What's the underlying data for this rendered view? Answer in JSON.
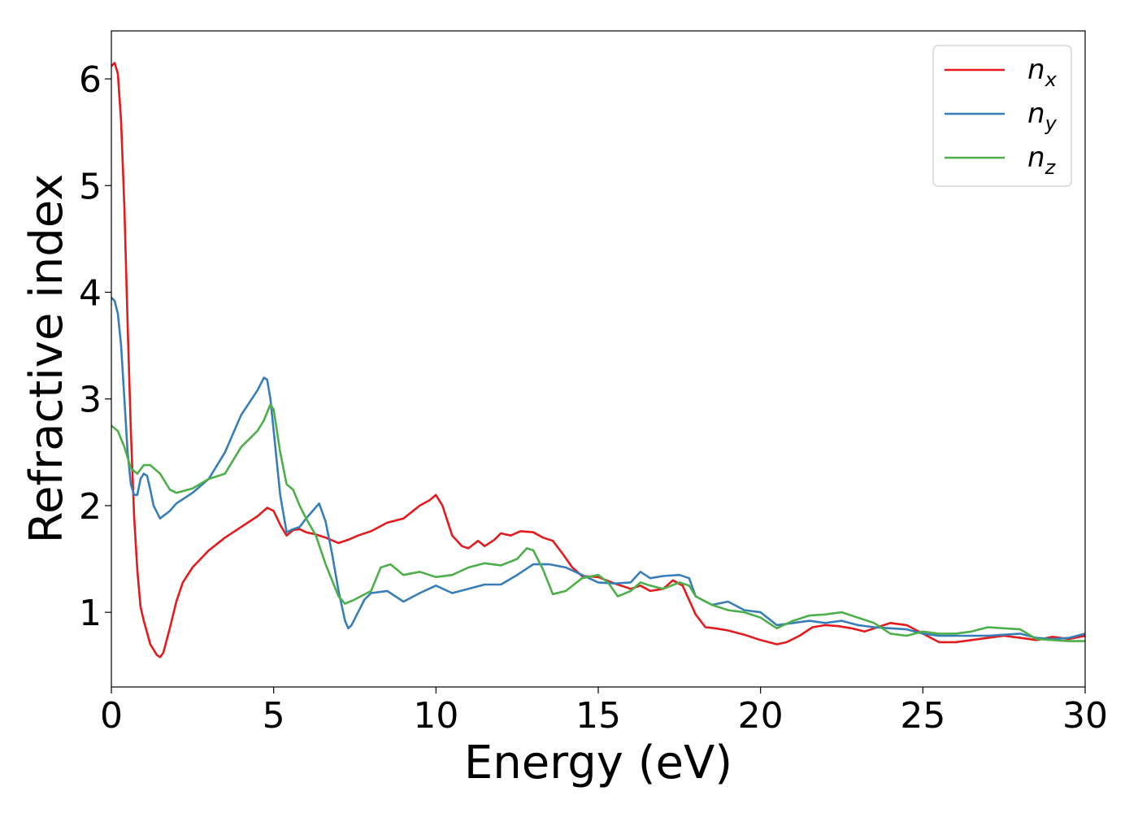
{
  "chart_data": {
    "type": "line",
    "xlabel": "Energy (eV)",
    "ylabel": "Refractive index",
    "xlim": [
      0,
      30
    ],
    "ylim": [
      0.3,
      6.45
    ],
    "xticks": [
      0,
      5,
      10,
      15,
      20,
      25,
      30
    ],
    "yticks": [
      1,
      2,
      3,
      4,
      5,
      6
    ],
    "grid": false,
    "legend_position": "top-right",
    "series": [
      {
        "name": "n_x",
        "label_base": "n",
        "label_sub": "x",
        "color": "#e41a1c",
        "x": [
          0,
          0.1,
          0.2,
          0.3,
          0.4,
          0.5,
          0.6,
          0.7,
          0.8,
          0.9,
          1.0,
          1.2,
          1.4,
          1.5,
          1.6,
          1.8,
          2.0,
          2.2,
          2.5,
          3.0,
          3.5,
          4.0,
          4.5,
          4.8,
          5.0,
          5.2,
          5.4,
          5.6,
          5.8,
          6.0,
          6.3,
          6.6,
          7.0,
          7.3,
          7.6,
          8.0,
          8.5,
          9.0,
          9.5,
          9.8,
          10.0,
          10.2,
          10.5,
          10.8,
          11.0,
          11.3,
          11.5,
          11.8,
          12.0,
          12.3,
          12.6,
          13.0,
          13.3,
          13.6,
          13.9,
          14.2,
          14.5,
          15.0,
          15.5,
          16.0,
          16.3,
          16.6,
          17.0,
          17.3,
          17.6,
          18.0,
          18.3,
          18.6,
          19.0,
          19.5,
          20.0,
          20.5,
          20.8,
          21.2,
          21.6,
          22.0,
          22.4,
          22.8,
          23.2,
          23.6,
          24.0,
          24.5,
          25.0,
          25.5,
          26.0,
          26.5,
          27.0,
          27.5,
          28.0,
          28.5,
          29.0,
          29.5,
          30.0
        ],
        "y": [
          6.12,
          6.15,
          6.05,
          5.6,
          4.8,
          3.7,
          2.7,
          1.9,
          1.4,
          1.05,
          0.92,
          0.7,
          0.6,
          0.58,
          0.62,
          0.85,
          1.1,
          1.28,
          1.42,
          1.58,
          1.7,
          1.8,
          1.9,
          1.98,
          1.95,
          1.82,
          1.72,
          1.77,
          1.78,
          1.75,
          1.73,
          1.7,
          1.65,
          1.68,
          1.72,
          1.76,
          1.84,
          1.88,
          2.0,
          2.05,
          2.1,
          2.0,
          1.72,
          1.62,
          1.6,
          1.67,
          1.62,
          1.68,
          1.74,
          1.72,
          1.76,
          1.75,
          1.7,
          1.67,
          1.55,
          1.42,
          1.34,
          1.33,
          1.27,
          1.22,
          1.25,
          1.2,
          1.22,
          1.3,
          1.25,
          0.98,
          0.86,
          0.85,
          0.83,
          0.79,
          0.74,
          0.7,
          0.72,
          0.78,
          0.86,
          0.88,
          0.87,
          0.85,
          0.82,
          0.86,
          0.9,
          0.88,
          0.8,
          0.72,
          0.72,
          0.74,
          0.76,
          0.78,
          0.76,
          0.74,
          0.77,
          0.75,
          0.78
        ]
      },
      {
        "name": "n_y",
        "label_base": "n",
        "label_sub": "y",
        "color": "#377eb8",
        "x": [
          0,
          0.1,
          0.2,
          0.3,
          0.4,
          0.5,
          0.6,
          0.7,
          0.8,
          0.9,
          1.0,
          1.1,
          1.2,
          1.3,
          1.5,
          1.8,
          2.0,
          2.5,
          3.0,
          3.5,
          4.0,
          4.5,
          4.7,
          4.8,
          4.9,
          5.0,
          5.2,
          5.4,
          5.6,
          5.8,
          6.0,
          6.2,
          6.4,
          6.6,
          6.8,
          7.0,
          7.2,
          7.3,
          7.4,
          7.6,
          7.8,
          8.0,
          8.5,
          9.0,
          9.5,
          10.0,
          10.5,
          11.0,
          11.5,
          12.0,
          12.5,
          13.0,
          13.5,
          14.0,
          14.5,
          15.0,
          15.5,
          16.0,
          16.3,
          16.6,
          17.0,
          17.5,
          17.8,
          18.0,
          18.5,
          19.0,
          19.5,
          20.0,
          20.5,
          21.0,
          21.5,
          22.0,
          22.5,
          23.0,
          23.5,
          24.0,
          24.5,
          25.0,
          25.5,
          26.0,
          26.5,
          27.0,
          27.5,
          28.0,
          28.5,
          29.0,
          29.5,
          30.0
        ],
        "y": [
          3.95,
          3.92,
          3.8,
          3.5,
          3.0,
          2.5,
          2.2,
          2.1,
          2.1,
          2.25,
          2.3,
          2.28,
          2.15,
          2.0,
          1.88,
          1.95,
          2.02,
          2.12,
          2.25,
          2.5,
          2.85,
          3.08,
          3.2,
          3.18,
          3.0,
          2.7,
          2.1,
          1.75,
          1.78,
          1.8,
          1.88,
          1.95,
          2.02,
          1.85,
          1.55,
          1.2,
          0.92,
          0.85,
          0.88,
          1.0,
          1.12,
          1.18,
          1.2,
          1.1,
          1.18,
          1.25,
          1.18,
          1.22,
          1.26,
          1.26,
          1.35,
          1.45,
          1.45,
          1.42,
          1.35,
          1.28,
          1.27,
          1.28,
          1.38,
          1.32,
          1.34,
          1.35,
          1.32,
          1.15,
          1.07,
          1.1,
          1.02,
          1.0,
          0.88,
          0.9,
          0.92,
          0.9,
          0.92,
          0.88,
          0.86,
          0.85,
          0.84,
          0.8,
          0.78,
          0.78,
          0.78,
          0.78,
          0.79,
          0.8,
          0.76,
          0.75,
          0.76,
          0.8
        ]
      },
      {
        "name": "n_z",
        "label_base": "n",
        "label_sub": "z",
        "color": "#4daf4a",
        "x": [
          0,
          0.2,
          0.4,
          0.6,
          0.8,
          1.0,
          1.2,
          1.5,
          1.8,
          2.0,
          2.5,
          3.0,
          3.5,
          4.0,
          4.5,
          4.7,
          4.9,
          5.0,
          5.2,
          5.4,
          5.6,
          5.8,
          6.0,
          6.3,
          6.6,
          7.0,
          7.2,
          7.5,
          8.0,
          8.3,
          8.6,
          9.0,
          9.5,
          10.0,
          10.5,
          11.0,
          11.5,
          12.0,
          12.5,
          12.8,
          13.0,
          13.3,
          13.6,
          14.0,
          14.5,
          15.0,
          15.3,
          15.6,
          16.0,
          16.3,
          16.6,
          17.0,
          17.5,
          17.8,
          18.0,
          18.5,
          19.0,
          19.5,
          20.0,
          20.5,
          21.0,
          21.5,
          22.0,
          22.5,
          23.0,
          23.5,
          24.0,
          24.5,
          25.0,
          25.5,
          26.0,
          26.5,
          27.0,
          27.5,
          28.0,
          28.5,
          29.0,
          29.5,
          30.0
        ],
        "y": [
          2.75,
          2.7,
          2.55,
          2.35,
          2.3,
          2.38,
          2.38,
          2.3,
          2.15,
          2.12,
          2.16,
          2.25,
          2.3,
          2.55,
          2.7,
          2.8,
          2.95,
          2.9,
          2.5,
          2.2,
          2.15,
          2.0,
          1.88,
          1.72,
          1.45,
          1.15,
          1.08,
          1.12,
          1.2,
          1.42,
          1.45,
          1.35,
          1.38,
          1.33,
          1.35,
          1.42,
          1.46,
          1.44,
          1.5,
          1.6,
          1.58,
          1.4,
          1.17,
          1.2,
          1.32,
          1.35,
          1.28,
          1.15,
          1.2,
          1.28,
          1.25,
          1.22,
          1.28,
          1.25,
          1.15,
          1.07,
          1.02,
          1.0,
          0.95,
          0.85,
          0.92,
          0.97,
          0.98,
          1.0,
          0.95,
          0.9,
          0.8,
          0.78,
          0.82,
          0.8,
          0.8,
          0.82,
          0.86,
          0.85,
          0.84,
          0.75,
          0.74,
          0.73,
          0.73
        ]
      }
    ]
  }
}
